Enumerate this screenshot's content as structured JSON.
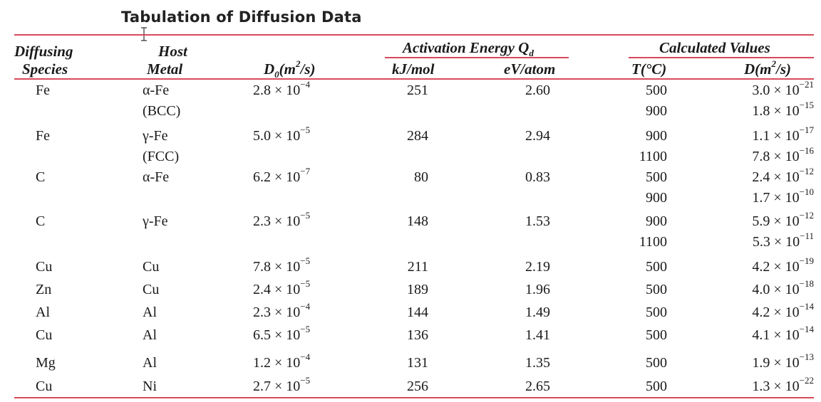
{
  "title": "Tabulation of Diffusion Data",
  "headers": {
    "diffusing": [
      "Diffusing",
      "Species"
    ],
    "host": [
      "Host",
      "Metal"
    ],
    "d0": {
      "base": "D",
      "sub": "0",
      "unit": "(m",
      "exp": "2",
      "tail": "/s)"
    },
    "activation": {
      "text": "Activation Energy Q",
      "sub": "d"
    },
    "kj": "kJ/mol",
    "ev": "eV/atom",
    "calculated": "Calculated Values",
    "t": "T(°C)",
    "d": {
      "base": "D(m",
      "exp": "2",
      "tail": "/s)"
    }
  },
  "rows": [
    {
      "species": "Fe",
      "host": [
        "α-Fe",
        "(BCC)"
      ],
      "d0": {
        "m": "2.8 × 10",
        "e": "−4"
      },
      "kj": "251",
      "ev": "2.60",
      "calc": [
        {
          "t": "500",
          "m": "3.0 × 10",
          "e": "−21"
        },
        {
          "t": "900",
          "m": "1.8 × 10",
          "e": "−15"
        }
      ]
    },
    {
      "species": "Fe",
      "host": [
        "γ-Fe",
        "(FCC)"
      ],
      "d0": {
        "m": "5.0 × 10",
        "e": "−5"
      },
      "kj": "284",
      "ev": "2.94",
      "calc": [
        {
          "t": "900",
          "m": "1.1 × 10",
          "e": "−17"
        },
        {
          "t": "1100",
          "m": "7.8 × 10",
          "e": "−16"
        }
      ]
    },
    {
      "species": "C",
      "host": [
        "α-Fe"
      ],
      "d0": {
        "m": "6.2 × 10",
        "e": "−7"
      },
      "kj": "80",
      "ev": "0.83",
      "calc": [
        {
          "t": "500",
          "m": "2.4 × 10",
          "e": "−12"
        },
        {
          "t": "900",
          "m": "1.7 × 10",
          "e": "−10"
        }
      ]
    },
    {
      "species": "C",
      "host": [
        "γ-Fe"
      ],
      "d0": {
        "m": "2.3 × 10",
        "e": "−5"
      },
      "kj": "148",
      "ev": "1.53",
      "calc": [
        {
          "t": "900",
          "m": "5.9 × 10",
          "e": "−12"
        },
        {
          "t": "1100",
          "m": "5.3 × 10",
          "e": "−11"
        }
      ]
    },
    {
      "species": "Cu",
      "host": [
        "Cu"
      ],
      "d0": {
        "m": "7.8 × 10",
        "e": "−5"
      },
      "kj": "211",
      "ev": "2.19",
      "calc": [
        {
          "t": "500",
          "m": "4.2 × 10",
          "e": "−19"
        }
      ]
    },
    {
      "species": "Zn",
      "host": [
        "Cu"
      ],
      "d0": {
        "m": "2.4 × 10",
        "e": "−5"
      },
      "kj": "189",
      "ev": "1.96",
      "calc": [
        {
          "t": "500",
          "m": "4.0 × 10",
          "e": "−18"
        }
      ]
    },
    {
      "species": "Al",
      "host": [
        "Al"
      ],
      "d0": {
        "m": "2.3 × 10",
        "e": "−4"
      },
      "kj": "144",
      "ev": "1.49",
      "calc": [
        {
          "t": "500",
          "m": "4.2 × 10",
          "e": "−14"
        }
      ]
    },
    {
      "species": "Cu",
      "host": [
        "Al"
      ],
      "d0": {
        "m": "6.5 × 10",
        "e": "−5"
      },
      "kj": "136",
      "ev": "1.41",
      "calc": [
        {
          "t": "500",
          "m": "4.1 × 10",
          "e": "−14"
        }
      ]
    },
    {
      "species": "Mg",
      "host": [
        "Al"
      ],
      "d0": {
        "m": "1.2 × 10",
        "e": "−4"
      },
      "kj": "131",
      "ev": "1.35",
      "calc": [
        {
          "t": "500",
          "m": "1.9 × 10",
          "e": "−13"
        }
      ]
    },
    {
      "species": "Cu",
      "host": [
        "Ni"
      ],
      "d0": {
        "m": "2.7 × 10",
        "e": "−5"
      },
      "kj": "256",
      "ev": "2.65",
      "calc": [
        {
          "t": "500",
          "m": "1.3 × 10",
          "e": "−22"
        }
      ]
    }
  ]
}
